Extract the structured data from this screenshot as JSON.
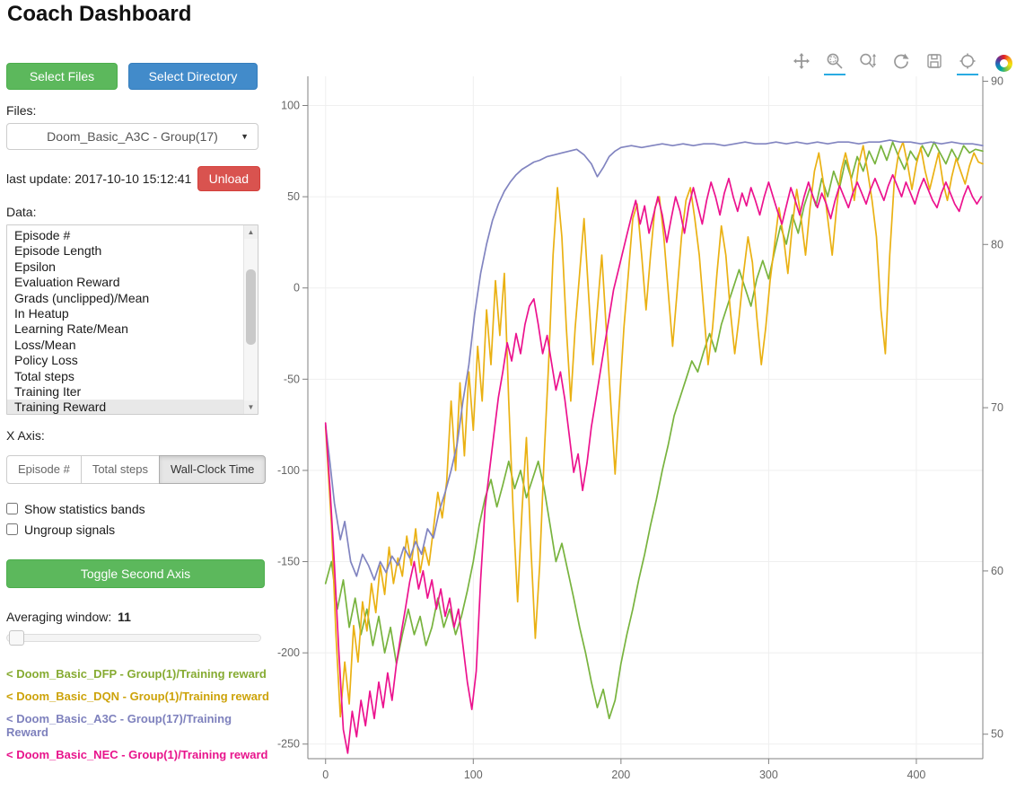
{
  "header": {
    "title": "Coach Dashboard"
  },
  "sidebar": {
    "select_files_label": "Select Files",
    "select_directory_label": "Select Directory",
    "files_label": "Files:",
    "files_selected": "Doom_Basic_A3C - Group(17)",
    "last_update_text": "last update: 2017-10-10 15:12:41",
    "unload_label": "Unload",
    "data_label": "Data:",
    "data_items": [
      "Episode #",
      "Episode Length",
      "Epsilon",
      "Evaluation Reward",
      "Grads (unclipped)/Mean",
      "In Heatup",
      "Learning Rate/Mean",
      "Loss/Mean",
      "Policy Loss",
      "Total steps",
      "Training Iter",
      "Training Reward"
    ],
    "data_selected": "Training Reward",
    "xaxis_label": "X Axis:",
    "xaxis_options": [
      "Episode #",
      "Total steps",
      "Wall-Clock Time"
    ],
    "xaxis_selected": "Wall-Clock Time",
    "checkboxes": [
      {
        "label": "Show statistics bands",
        "checked": false
      },
      {
        "label": "Ungroup signals",
        "checked": false
      }
    ],
    "toggle_second_axis_label": "Toggle Second Axis",
    "averaging_window_label": "Averaging window:",
    "averaging_window_value": "11",
    "legend": [
      {
        "label": "< Doom_Basic_DFP - Group(1)/Training reward",
        "color": "#86ab32"
      },
      {
        "label": "< Doom_Basic_DQN - Group(1)/Training reward",
        "color": "#cda30b"
      },
      {
        "label": "< Doom_Basic_A3C - Group(17)/Training Reward",
        "color": "#7e81bd"
      },
      {
        "label": "< Doom_Basic_NEC - Group(1)/Training reward",
        "color": "#e8148c"
      }
    ]
  },
  "toolbar": {
    "accent": "#29abe2",
    "icon_color": "#989898",
    "tools": [
      {
        "icon": "pan-icon",
        "active": false
      },
      {
        "icon": "box-zoom-icon",
        "active": true
      },
      {
        "icon": "wheel-zoom-icon",
        "active": false
      },
      {
        "icon": "reset-icon",
        "active": false
      },
      {
        "icon": "save-icon",
        "active": false
      },
      {
        "icon": "hover-icon",
        "active": true
      }
    ],
    "logo": "bokeh-logo"
  },
  "chart_data": {
    "type": "line",
    "title": "",
    "xlabel": "",
    "ylabel": "",
    "grid": true,
    "legend_position": "sidebar",
    "xlim": [
      -12,
      445
    ],
    "ylim_left": [
      -258,
      116
    ],
    "ylim_right": [
      48.5,
      90.3
    ],
    "x_ticks": [
      0,
      100,
      200,
      300,
      400
    ],
    "y_ticks_left": [
      100,
      50,
      0,
      -50,
      -100,
      -150,
      -200,
      -250
    ],
    "y_ticks_right": [
      90,
      80,
      70,
      60,
      50
    ],
    "axis_color": "#808080",
    "label_color": "#666666",
    "grid_color": "#efefef",
    "series": [
      {
        "name": "Doom_Basic_DFP - Group(1)/Training reward",
        "color": "#78b33e",
        "axis": "left",
        "points": [
          0,
          -162,
          4,
          -150,
          8,
          -176,
          12,
          -160,
          16,
          -186,
          20,
          -170,
          24,
          -190,
          28,
          -176,
          32,
          -196,
          36,
          -180,
          40,
          -200,
          44,
          -186,
          48,
          -206,
          52,
          -190,
          56,
          -176,
          60,
          -190,
          64,
          -180,
          68,
          -196,
          72,
          -186,
          76,
          -170,
          80,
          -186,
          84,
          -176,
          88,
          -190,
          92,
          -180,
          96,
          -166,
          100,
          -150,
          104,
          -130,
          108,
          -115,
          112,
          -105,
          116,
          -120,
          120,
          -108,
          124,
          -95,
          128,
          -110,
          132,
          -100,
          136,
          -115,
          140,
          -105,
          144,
          -95,
          148,
          -110,
          152,
          -130,
          156,
          -150,
          160,
          -140,
          164,
          -155,
          168,
          -170,
          172,
          -186,
          176,
          -200,
          180,
          -216,
          184,
          -230,
          188,
          -220,
          192,
          -236,
          196,
          -226,
          200,
          -206,
          204,
          -190,
          208,
          -176,
          212,
          -160,
          216,
          -146,
          220,
          -130,
          224,
          -116,
          228,
          -100,
          232,
          -86,
          236,
          -70,
          240,
          -60,
          244,
          -50,
          248,
          -40,
          252,
          -46,
          256,
          -35,
          260,
          -25,
          264,
          -35,
          268,
          -20,
          272,
          -10,
          276,
          0,
          280,
          10,
          284,
          0,
          288,
          -10,
          292,
          5,
          296,
          15,
          300,
          5,
          304,
          20,
          308,
          34,
          312,
          24,
          316,
          40,
          320,
          30,
          324,
          45,
          328,
          55,
          332,
          45,
          336,
          60,
          340,
          50,
          344,
          64,
          348,
          55,
          352,
          70,
          356,
          60,
          360,
          72,
          364,
          64,
          368,
          75,
          372,
          68,
          376,
          78,
          380,
          70,
          384,
          80,
          388,
          72,
          392,
          65,
          396,
          75,
          400,
          70,
          404,
          78,
          408,
          72,
          412,
          80,
          416,
          74,
          420,
          68,
          424,
          76,
          428,
          70,
          432,
          78,
          436,
          74,
          440,
          76,
          445,
          75
        ]
      },
      {
        "name": "Doom_Basic_DQN - Group(1)/Training reward",
        "color": "#eab113",
        "axis": "left",
        "points": [
          0,
          -76,
          4,
          -130,
          7,
          -190,
          10,
          -235,
          13,
          -205,
          16,
          -228,
          19,
          -185,
          22,
          -205,
          25,
          -172,
          28,
          -188,
          31,
          -162,
          34,
          -178,
          37,
          -152,
          40,
          -168,
          43,
          -142,
          46,
          -162,
          49,
          -148,
          52,
          -158,
          55,
          -136,
          58,
          -152,
          61,
          -132,
          64,
          -156,
          67,
          -142,
          70,
          -152,
          73,
          -132,
          76,
          -112,
          79,
          -126,
          82,
          -106,
          85,
          -62,
          88,
          -100,
          91,
          -52,
          94,
          -92,
          97,
          -46,
          100,
          -78,
          103,
          -32,
          106,
          -62,
          109,
          -12,
          112,
          -42,
          115,
          4,
          118,
          -26,
          121,
          8,
          124,
          -62,
          127,
          -122,
          130,
          -172,
          133,
          -122,
          136,
          -82,
          139,
          -142,
          142,
          -192,
          145,
          -152,
          148,
          -92,
          151,
          -42,
          154,
          18,
          157,
          55,
          160,
          28,
          163,
          -22,
          166,
          -62,
          169,
          -22,
          172,
          8,
          175,
          38,
          178,
          -2,
          181,
          -42,
          184,
          -12,
          187,
          18,
          190,
          -22,
          193,
          -62,
          196,
          -102,
          199,
          -62,
          202,
          -22,
          205,
          8,
          208,
          38,
          211,
          46,
          214,
          18,
          217,
          -12,
          220,
          18,
          223,
          44,
          226,
          50,
          229,
          28,
          232,
          -2,
          235,
          -32,
          238,
          -2,
          241,
          28,
          244,
          48,
          247,
          55,
          250,
          38,
          253,
          18,
          256,
          -12,
          259,
          -42,
          262,
          -22,
          265,
          8,
          268,
          34,
          271,
          18,
          274,
          -12,
          277,
          -36,
          280,
          -16,
          283,
          8,
          286,
          28,
          289,
          14,
          292,
          -16,
          295,
          -42,
          298,
          -22,
          301,
          4,
          304,
          24,
          307,
          44,
          310,
          28,
          313,
          8,
          316,
          34,
          319,
          54,
          322,
          38,
          325,
          18,
          328,
          44,
          331,
          64,
          334,
          74,
          337,
          58,
          340,
          38,
          343,
          18,
          346,
          44,
          349,
          64,
          352,
          74,
          355,
          64,
          358,
          48,
          361,
          68,
          364,
          78,
          367,
          64,
          370,
          48,
          373,
          28,
          376,
          -12,
          379,
          -36,
          382,
          18,
          385,
          58,
          388,
          74,
          391,
          80,
          394,
          68,
          397,
          54,
          400,
          68,
          403,
          77,
          406,
          64,
          409,
          54,
          412,
          64,
          415,
          74,
          418,
          58,
          421,
          48,
          424,
          61,
          427,
          71,
          430,
          64,
          433,
          57,
          436,
          67,
          439,
          74,
          442,
          69,
          445,
          68
        ]
      },
      {
        "name": "Doom_Basic_A3C - Group(17)/Training Reward",
        "color": "#8184c0",
        "axis": "left",
        "points": [
          0,
          -75,
          3,
          -96,
          6,
          -118,
          10,
          -138,
          13,
          -128,
          17,
          -150,
          21,
          -158,
          25,
          -146,
          29,
          -152,
          33,
          -160,
          37,
          -150,
          41,
          -156,
          45,
          -147,
          49,
          -152,
          53,
          -142,
          57,
          -148,
          61,
          -139,
          65,
          -146,
          69,
          -132,
          73,
          -137,
          77,
          -122,
          81,
          -112,
          85,
          -100,
          89,
          -86,
          93,
          -62,
          97,
          -42,
          101,
          -14,
          105,
          8,
          109,
          24,
          113,
          37,
          117,
          46,
          121,
          53,
          125,
          58,
          129,
          62,
          133,
          65,
          137,
          67,
          141,
          69,
          145,
          70,
          150,
          72,
          155,
          73,
          160,
          74,
          165,
          75,
          170,
          76,
          175,
          73,
          180,
          68,
          184,
          61,
          188,
          66,
          192,
          72,
          196,
          75,
          200,
          77,
          207,
          78,
          214,
          77,
          221,
          78,
          228,
          79,
          235,
          78,
          242,
          79,
          249,
          78,
          256,
          79,
          263,
          79,
          270,
          78,
          277,
          79,
          284,
          80,
          291,
          79,
          298,
          79,
          305,
          80,
          312,
          79,
          319,
          80,
          326,
          79,
          333,
          80,
          340,
          79,
          347,
          80,
          354,
          80,
          361,
          79,
          368,
          80,
          375,
          80,
          382,
          81,
          389,
          80,
          396,
          80,
          403,
          79,
          410,
          80,
          417,
          79,
          424,
          80,
          431,
          79,
          438,
          79,
          445,
          78
        ]
      },
      {
        "name": "Doom_Basic_NEC - Group(1)/Training reward",
        "color": "#ec128e",
        "axis": "left",
        "points": [
          0,
          -74,
          3,
          -110,
          6,
          -152,
          9,
          -200,
          12,
          -242,
          15,
          -255,
          18,
          -232,
          21,
          -246,
          24,
          -226,
          27,
          -240,
          30,
          -221,
          33,
          -236,
          36,
          -216,
          39,
          -230,
          42,
          -211,
          45,
          -226,
          48,
          -206,
          51,
          -190,
          54,
          -176,
          57,
          -161,
          60,
          -150,
          63,
          -165,
          66,
          -155,
          69,
          -170,
          72,
          -160,
          75,
          -176,
          78,
          -165,
          81,
          -180,
          84,
          -170,
          87,
          -186,
          90,
          -176,
          93,
          -196,
          96,
          -216,
          99,
          -231,
          102,
          -210,
          105,
          -160,
          108,
          -120,
          111,
          -100,
          114,
          -80,
          117,
          -60,
          120,
          -46,
          123,
          -30,
          126,
          -40,
          129,
          -25,
          132,
          -36,
          135,
          -20,
          138,
          -10,
          141,
          -6,
          144,
          -20,
          147,
          -36,
          150,
          -26,
          153,
          -41,
          156,
          -56,
          159,
          -46,
          162,
          -61,
          165,
          -81,
          168,
          -101,
          171,
          -91,
          174,
          -111,
          177,
          -96,
          180,
          -76,
          183,
          -61,
          186,
          -46,
          189,
          -31,
          192,
          -16,
          195,
          -1,
          198,
          9,
          201,
          19,
          204,
          29,
          207,
          39,
          210,
          48,
          213,
          35,
          216,
          45,
          219,
          30,
          222,
          40,
          225,
          50,
          228,
          40,
          231,
          25,
          234,
          38,
          237,
          50,
          240,
          42,
          243,
          30,
          246,
          45,
          249,
          55,
          252,
          45,
          255,
          35,
          258,
          48,
          261,
          58,
          264,
          50,
          267,
          40,
          270,
          52,
          273,
          60,
          276,
          50,
          279,
          42,
          282,
          52,
          285,
          45,
          288,
          55,
          291,
          48,
          294,
          40,
          297,
          50,
          300,
          58,
          303,
          50,
          306,
          42,
          309,
          35,
          312,
          45,
          315,
          55,
          318,
          48,
          321,
          40,
          324,
          50,
          327,
          58,
          330,
          50,
          333,
          44,
          336,
          52,
          339,
          46,
          342,
          38,
          345,
          48,
          348,
          56,
          351,
          50,
          354,
          44,
          357,
          52,
          360,
          58,
          363,
          52,
          366,
          46,
          369,
          54,
          372,
          60,
          375,
          54,
          378,
          48,
          381,
          56,
          384,
          62,
          387,
          56,
          390,
          50,
          393,
          58,
          396,
          52,
          399,
          46,
          402,
          54,
          405,
          60,
          408,
          54,
          411,
          48,
          414,
          44,
          417,
          52,
          420,
          58,
          423,
          52,
          426,
          46,
          429,
          42,
          432,
          50,
          435,
          56,
          438,
          50,
          441,
          46,
          444,
          50
        ]
      }
    ]
  }
}
